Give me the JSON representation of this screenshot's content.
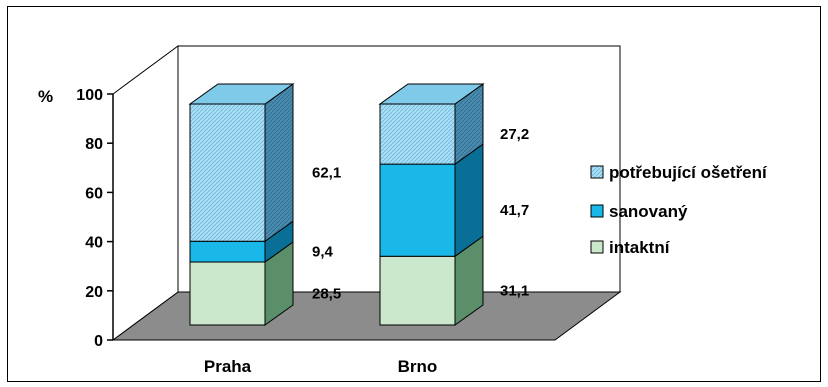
{
  "chart_data": {
    "type": "bar",
    "stacked": true,
    "three_d": true,
    "unit_label": "%",
    "title": "",
    "xlabel": "",
    "ylabel": "",
    "ylim": [
      0,
      100
    ],
    "yticks": [
      0,
      20,
      40,
      60,
      80,
      100
    ],
    "categories": [
      "Praha",
      "Brno"
    ],
    "series": [
      {
        "name": "intaktní",
        "values": [
          28.5,
          31.1
        ],
        "labels": [
          "28,5",
          "31,1"
        ],
        "color": "#cce8cc",
        "side_color": "#5a8f6a"
      },
      {
        "name": "sanovaný",
        "values": [
          9.4,
          41.7
        ],
        "labels": [
          "9,4",
          "41,7"
        ],
        "color": "#1ab8e8",
        "side_color": "#0a6f96"
      },
      {
        "name": "potřebující ošetření",
        "values": [
          62.1,
          27.2
        ],
        "labels": [
          "62,1",
          "27,2"
        ],
        "color": "#a8def4",
        "side_color": "#4a8cb0"
      }
    ],
    "legend_placement": "right",
    "legend_order": [
      "potřebující ošetření",
      "sanovaný",
      "intaktní"
    ],
    "floor_color": "#8c8c8c",
    "grid": false
  }
}
